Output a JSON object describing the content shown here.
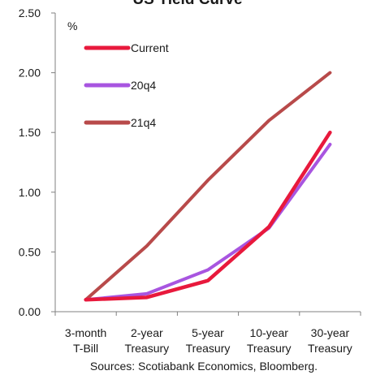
{
  "chart_data": {
    "type": "line",
    "title": "US Yield Curve",
    "ylabel": "%",
    "xlabel": "",
    "ylim": [
      0,
      2.5
    ],
    "yticks": [
      "0.00",
      "0.50",
      "1.00",
      "1.50",
      "2.00",
      "2.50"
    ],
    "ytick_values": [
      0,
      0.5,
      1.0,
      1.5,
      2.0,
      2.5
    ],
    "categories": [
      [
        "3-month",
        "T-Bill"
      ],
      [
        "2-year",
        "Treasury"
      ],
      [
        "5-year",
        "Treasury"
      ],
      [
        "10-year",
        "Treasury"
      ],
      [
        "30-year",
        "Treasury"
      ]
    ],
    "legend_position": "top-left",
    "grid": false,
    "series": [
      {
        "name": "Current",
        "color": "#e8193c",
        "values": [
          0.1,
          0.12,
          0.26,
          0.71,
          1.5
        ]
      },
      {
        "name": "20q4",
        "color": "#a855e0",
        "values": [
          0.1,
          0.15,
          0.35,
          0.7,
          1.4
        ]
      },
      {
        "name": "21q4",
        "color": "#b84a4a",
        "values": [
          0.1,
          0.55,
          1.1,
          1.6,
          2.0
        ]
      }
    ],
    "source": "Sources: Scotiabank Economics,  Bloomberg."
  }
}
